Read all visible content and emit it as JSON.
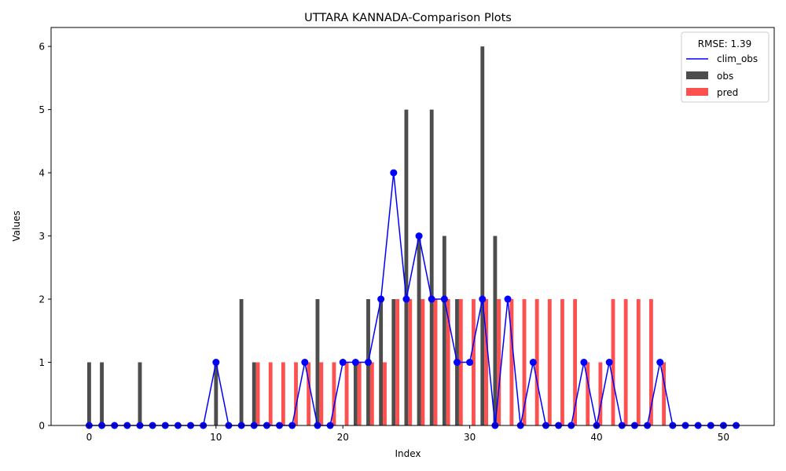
{
  "chart_data": {
    "type": "bar",
    "title": "UTTARA KANNADA-Comparison Plots",
    "xlabel": "Index",
    "ylabel": "Values",
    "xlim": [
      -3,
      54
    ],
    "ylim": [
      0,
      6.3
    ],
    "xticks": [
      0,
      10,
      20,
      30,
      40,
      50
    ],
    "yticks": [
      0,
      1,
      2,
      3,
      4,
      5,
      6
    ],
    "grid": false,
    "legend": {
      "title": "RMSE: 1.39",
      "placement": "top-right",
      "entries": [
        "clim_obs",
        "obs",
        "pred"
      ]
    },
    "colors": {
      "clim_obs": "#0000ff",
      "obs": "#4d4d4d",
      "pred": "#ff5050"
    },
    "x": [
      0,
      1,
      2,
      3,
      4,
      5,
      6,
      7,
      8,
      9,
      10,
      11,
      12,
      13,
      14,
      15,
      16,
      17,
      18,
      19,
      20,
      21,
      22,
      23,
      24,
      25,
      26,
      27,
      28,
      29,
      30,
      31,
      32,
      33,
      34,
      35,
      36,
      37,
      38,
      39,
      40,
      41,
      42,
      43,
      44,
      45,
      46,
      47,
      48,
      49,
      50,
      51
    ],
    "series": [
      {
        "name": "obs",
        "kind": "bar",
        "values": [
          1,
          1,
          0,
          0,
          1,
          0,
          0,
          0,
          0,
          0,
          1,
          0,
          2,
          1,
          0,
          0,
          0,
          0,
          2,
          0,
          0,
          1,
          2,
          2,
          2,
          5,
          3,
          5,
          3,
          2,
          0,
          6,
          3,
          0,
          0,
          0,
          0,
          0,
          0,
          0,
          0,
          0,
          0,
          0,
          0,
          0,
          0,
          0,
          0,
          0,
          0,
          0
        ]
      },
      {
        "name": "pred",
        "kind": "bar",
        "values": [
          0,
          0,
          0,
          0,
          0,
          0,
          0,
          0,
          0,
          0,
          0,
          0,
          0,
          1,
          1,
          1,
          1,
          1,
          1,
          1,
          1,
          1,
          1,
          1,
          2,
          2,
          2,
          2,
          2,
          2,
          2,
          2,
          2,
          2,
          2,
          2,
          2,
          2,
          2,
          1,
          1,
          2,
          2,
          2,
          2,
          1,
          0,
          0,
          0,
          0,
          0,
          0
        ]
      },
      {
        "name": "clim_obs",
        "kind": "line",
        "values": [
          0,
          0,
          0,
          0,
          0,
          0,
          0,
          0,
          0,
          0,
          1,
          0,
          0,
          0,
          0,
          0,
          0,
          1,
          0,
          0,
          1,
          1,
          1,
          2,
          4,
          2,
          3,
          2,
          2,
          1,
          1,
          2,
          0,
          2,
          0,
          1,
          0,
          0,
          0,
          1,
          0,
          1,
          0,
          0,
          0,
          1,
          0,
          0,
          0,
          0,
          0,
          0
        ]
      }
    ]
  }
}
